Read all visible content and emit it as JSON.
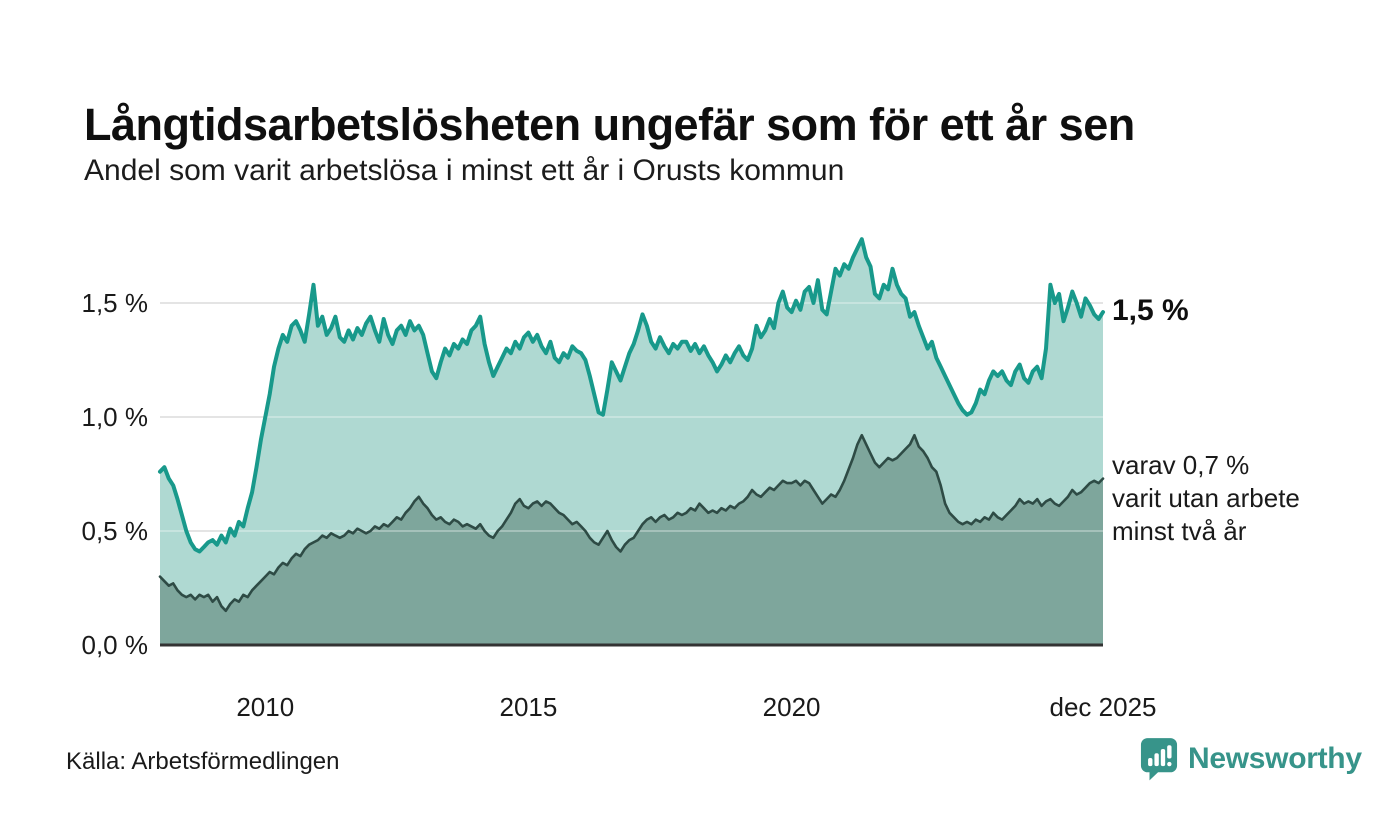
{
  "header": {
    "title": "Långtidsarbetslösheten ungefär som för ett år sen",
    "subtitle": "Andel som varit arbetslösa i minst ett år i Orusts kommun"
  },
  "chart_data": {
    "type": "area",
    "title": "Långtidsarbetslösheten ungefär som för ett år sen",
    "subtitle": "Andel som varit arbetslösa i minst ett år i Orusts kommun",
    "x_range": {
      "start_year": 2008.0,
      "end_year": 2025.9167,
      "resolution": "monthly"
    },
    "ylim": [
      0,
      1.85
    ],
    "grid": true,
    "y_ticks": [
      {
        "label": "0,0 %",
        "value": 0.0
      },
      {
        "label": "0,5 %",
        "value": 0.5
      },
      {
        "label": "1,0 %",
        "value": 1.0
      },
      {
        "label": "1,5 %",
        "value": 1.5
      }
    ],
    "x_ticks": [
      {
        "label": "2010",
        "year": 2010.0
      },
      {
        "label": "2015",
        "year": 2015.0
      },
      {
        "label": "2020",
        "year": 2020.0
      },
      {
        "label": "dec 2025",
        "year": 2025.9167
      }
    ],
    "colors": {
      "total_line": "#18998b",
      "total_fill": "#afd9d2",
      "subset_line": "#2e4b45",
      "subset_fill": "#7ea69c",
      "gridline": "#d8d8d8",
      "baseline": "#333333"
    },
    "series": [
      {
        "name": "arbetslösa minst ett år",
        "values": [
          0.76,
          0.78,
          0.73,
          0.7,
          0.64,
          0.57,
          0.5,
          0.45,
          0.42,
          0.41,
          0.43,
          0.45,
          0.46,
          0.44,
          0.48,
          0.45,
          0.51,
          0.48,
          0.54,
          0.52,
          0.6,
          0.67,
          0.78,
          0.9,
          1.0,
          1.1,
          1.22,
          1.3,
          1.36,
          1.33,
          1.4,
          1.42,
          1.38,
          1.33,
          1.45,
          1.58,
          1.4,
          1.44,
          1.36,
          1.39,
          1.44,
          1.35,
          1.33,
          1.38,
          1.34,
          1.39,
          1.36,
          1.41,
          1.44,
          1.38,
          1.33,
          1.43,
          1.36,
          1.32,
          1.38,
          1.4,
          1.36,
          1.42,
          1.38,
          1.4,
          1.36,
          1.28,
          1.2,
          1.17,
          1.24,
          1.3,
          1.27,
          1.32,
          1.3,
          1.34,
          1.32,
          1.38,
          1.4,
          1.44,
          1.32,
          1.24,
          1.18,
          1.22,
          1.26,
          1.3,
          1.28,
          1.33,
          1.3,
          1.35,
          1.37,
          1.33,
          1.36,
          1.31,
          1.28,
          1.33,
          1.26,
          1.24,
          1.28,
          1.26,
          1.31,
          1.29,
          1.28,
          1.25,
          1.18,
          1.1,
          1.02,
          1.01,
          1.12,
          1.24,
          1.2,
          1.16,
          1.22,
          1.28,
          1.32,
          1.38,
          1.45,
          1.4,
          1.33,
          1.3,
          1.35,
          1.31,
          1.28,
          1.32,
          1.3,
          1.33,
          1.33,
          1.29,
          1.32,
          1.28,
          1.31,
          1.27,
          1.24,
          1.2,
          1.23,
          1.27,
          1.24,
          1.28,
          1.31,
          1.27,
          1.25,
          1.3,
          1.4,
          1.35,
          1.38,
          1.43,
          1.39,
          1.5,
          1.55,
          1.48,
          1.46,
          1.51,
          1.47,
          1.55,
          1.57,
          1.5,
          1.6,
          1.47,
          1.45,
          1.55,
          1.65,
          1.62,
          1.67,
          1.65,
          1.7,
          1.74,
          1.78,
          1.7,
          1.66,
          1.54,
          1.52,
          1.58,
          1.56,
          1.65,
          1.58,
          1.54,
          1.52,
          1.44,
          1.46,
          1.4,
          1.35,
          1.3,
          1.33,
          1.26,
          1.22,
          1.18,
          1.14,
          1.1,
          1.06,
          1.03,
          1.01,
          1.02,
          1.06,
          1.12,
          1.1,
          1.16,
          1.2,
          1.18,
          1.2,
          1.16,
          1.14,
          1.2,
          1.23,
          1.17,
          1.15,
          1.2,
          1.22,
          1.17,
          1.3,
          1.58,
          1.5,
          1.54,
          1.42,
          1.48,
          1.55,
          1.5,
          1.44,
          1.52,
          1.49,
          1.45,
          1.43,
          1.46
        ]
      },
      {
        "name": "varav utan arbete minst två år",
        "values": [
          0.3,
          0.28,
          0.26,
          0.27,
          0.24,
          0.22,
          0.21,
          0.22,
          0.2,
          0.22,
          0.21,
          0.22,
          0.19,
          0.21,
          0.17,
          0.15,
          0.18,
          0.2,
          0.19,
          0.22,
          0.21,
          0.24,
          0.26,
          0.28,
          0.3,
          0.32,
          0.31,
          0.34,
          0.36,
          0.35,
          0.38,
          0.4,
          0.39,
          0.42,
          0.44,
          0.45,
          0.46,
          0.48,
          0.47,
          0.49,
          0.48,
          0.47,
          0.48,
          0.5,
          0.49,
          0.51,
          0.5,
          0.49,
          0.5,
          0.52,
          0.51,
          0.53,
          0.52,
          0.54,
          0.56,
          0.55,
          0.58,
          0.6,
          0.63,
          0.65,
          0.62,
          0.6,
          0.57,
          0.55,
          0.56,
          0.54,
          0.53,
          0.55,
          0.54,
          0.52,
          0.53,
          0.52,
          0.51,
          0.53,
          0.5,
          0.48,
          0.47,
          0.5,
          0.52,
          0.55,
          0.58,
          0.62,
          0.64,
          0.61,
          0.6,
          0.62,
          0.63,
          0.61,
          0.63,
          0.62,
          0.6,
          0.58,
          0.57,
          0.55,
          0.53,
          0.54,
          0.52,
          0.5,
          0.47,
          0.45,
          0.44,
          0.47,
          0.5,
          0.46,
          0.43,
          0.41,
          0.44,
          0.46,
          0.47,
          0.5,
          0.53,
          0.55,
          0.56,
          0.54,
          0.56,
          0.57,
          0.55,
          0.56,
          0.58,
          0.57,
          0.58,
          0.6,
          0.59,
          0.62,
          0.6,
          0.58,
          0.59,
          0.58,
          0.6,
          0.59,
          0.61,
          0.6,
          0.62,
          0.63,
          0.65,
          0.68,
          0.66,
          0.65,
          0.67,
          0.69,
          0.68,
          0.7,
          0.72,
          0.71,
          0.71,
          0.72,
          0.7,
          0.72,
          0.71,
          0.68,
          0.65,
          0.62,
          0.64,
          0.66,
          0.65,
          0.68,
          0.72,
          0.77,
          0.82,
          0.88,
          0.92,
          0.88,
          0.84,
          0.8,
          0.78,
          0.8,
          0.82,
          0.81,
          0.82,
          0.84,
          0.86,
          0.88,
          0.92,
          0.87,
          0.85,
          0.82,
          0.78,
          0.76,
          0.7,
          0.62,
          0.58,
          0.56,
          0.54,
          0.53,
          0.54,
          0.53,
          0.55,
          0.54,
          0.56,
          0.55,
          0.58,
          0.56,
          0.55,
          0.57,
          0.59,
          0.61,
          0.64,
          0.62,
          0.63,
          0.62,
          0.64,
          0.61,
          0.63,
          0.64,
          0.62,
          0.61,
          0.63,
          0.65,
          0.68,
          0.66,
          0.67,
          0.69,
          0.71,
          0.72,
          0.71,
          0.73
        ]
      }
    ],
    "annotations": {
      "total_end_label": "1,5 %",
      "subset_end_lines": [
        "varav 0,7 %",
        "varit utan arbete",
        "minst två år"
      ]
    }
  },
  "footer": {
    "source": "Källa: Arbetsförmedlingen",
    "brand_name": "Newsworthy",
    "brand_color": "#37948a"
  }
}
